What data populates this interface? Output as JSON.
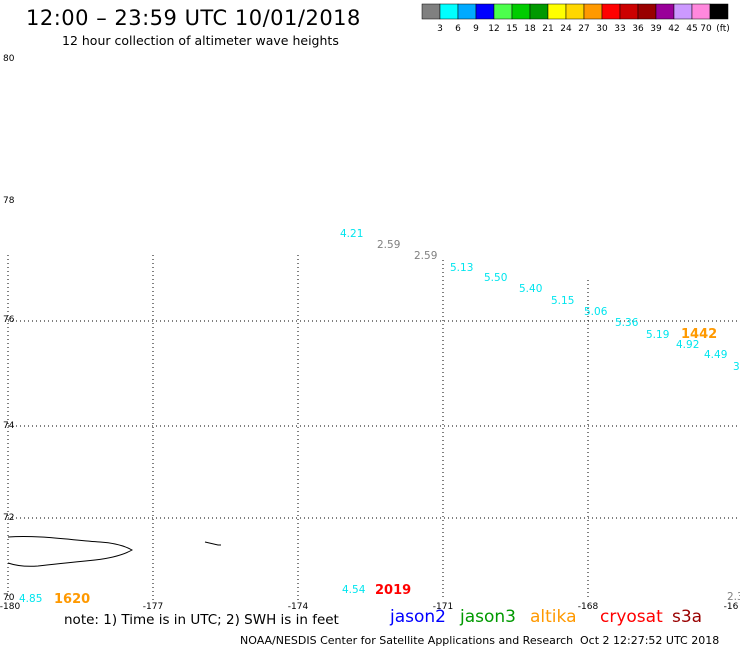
{
  "header": {
    "title": "12:00 – 23:59 UTC 10/01/2018",
    "subtitle": "12 hour collection of altimeter wave heights"
  },
  "legend": {
    "colors": [
      "#808080",
      "#00ffff",
      "#00aaff",
      "#0000ff",
      "#4cff4c",
      "#00cc00",
      "#009900",
      "#ffff00",
      "#ffd700",
      "#ff9900",
      "#ff0000",
      "#cc0000",
      "#990000",
      "#990099",
      "#cc99ff",
      "#ff88dd",
      "#000000"
    ],
    "labels": [
      "3",
      "6",
      "9",
      "12",
      "15",
      "18",
      "21",
      "24",
      "27",
      "30",
      "33",
      "36",
      "39",
      "42",
      "45",
      "70",
      "(ft)"
    ]
  },
  "map": {
    "lat_labels": [
      "80",
      "78",
      "76",
      "74",
      "72",
      "70"
    ],
    "lon_labels": [
      "-180",
      "-177",
      "-174",
      "-171",
      "-168",
      "-16"
    ],
    "wave_heights": [
      {
        "text": "4.21",
        "color": "#00e5ee"
      },
      {
        "text": "2.59",
        "color": "#808080"
      },
      {
        "text": "2.59",
        "color": "#808080"
      },
      {
        "text": "5.13",
        "color": "#00e5ee"
      },
      {
        "text": "5.50",
        "color": "#00e5ee"
      },
      {
        "text": "5.40",
        "color": "#00e5ee"
      },
      {
        "text": "5.15",
        "color": "#00e5ee"
      },
      {
        "text": "5.06",
        "color": "#00e5ee"
      },
      {
        "text": "5.36",
        "color": "#00e5ee"
      },
      {
        "text": "5.19",
        "color": "#00e5ee"
      },
      {
        "text": "4.92",
        "color": "#00e5ee"
      },
      {
        "text": "4.49",
        "color": "#00e5ee"
      },
      {
        "text": "3",
        "color": "#00e5ee"
      },
      {
        "text": "4.85",
        "color": "#00e5ee"
      },
      {
        "text": "4.54",
        "color": "#00e5ee"
      },
      {
        "text": "2.3",
        "color": "#808080"
      }
    ],
    "pass_times": [
      {
        "text": "1442",
        "color": "#ff9900"
      },
      {
        "text": "1620",
        "color": "#ff9900"
      },
      {
        "text": "2019",
        "color": "#ff0000"
      }
    ]
  },
  "footer": {
    "note": "note: 1) Time is in UTC; 2) SWH is in feet",
    "satellites": [
      {
        "name": "jason2",
        "color": "#0000ff"
      },
      {
        "name": "jason3",
        "color": "#009900"
      },
      {
        "name": "altika",
        "color": "#ff9900"
      },
      {
        "name": "cryosat",
        "color": "#ff0000"
      },
      {
        "name": "s3a",
        "color": "#990000"
      }
    ],
    "credit": "NOAA/NESDIS Center for Satellite Applications and Research",
    "timestamp": "Oct  2 12:27:52 UTC 2018"
  }
}
